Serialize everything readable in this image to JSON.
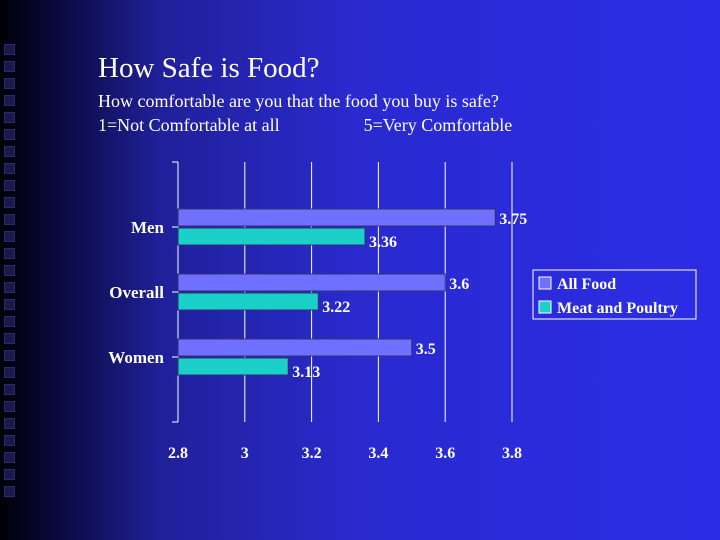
{
  "title": "How Safe is Food?",
  "subtitle_line1": "How comfortable are you that the food you buy is safe?",
  "subtitle_line2_left": "1=Not Comfortable at all",
  "subtitle_line2_right": "5=Very Comfortable",
  "colors": {
    "all_food": "#7070ff",
    "meat_poultry": "#1ad0c8",
    "grid": "#ffffff"
  },
  "chart_data": {
    "type": "bar",
    "orientation": "horizontal",
    "categories": [
      "Men",
      "Overall",
      "Women"
    ],
    "series": [
      {
        "name": "All Food",
        "values": [
          3.75,
          3.6,
          3.5
        ]
      },
      {
        "name": "Meat and Poultry",
        "values": [
          3.36,
          3.22,
          3.13
        ]
      }
    ],
    "data_labels": [
      [
        "3.75",
        "3.6",
        "3.5"
      ],
      [
        "3.36",
        "3.22",
        "3.13"
      ]
    ],
    "xlim": [
      2.8,
      3.8
    ],
    "xticks": [
      "2.8",
      "3",
      "3.2",
      "3.4",
      "3.6",
      "3.8"
    ],
    "grid": true,
    "legend_position": "right"
  }
}
